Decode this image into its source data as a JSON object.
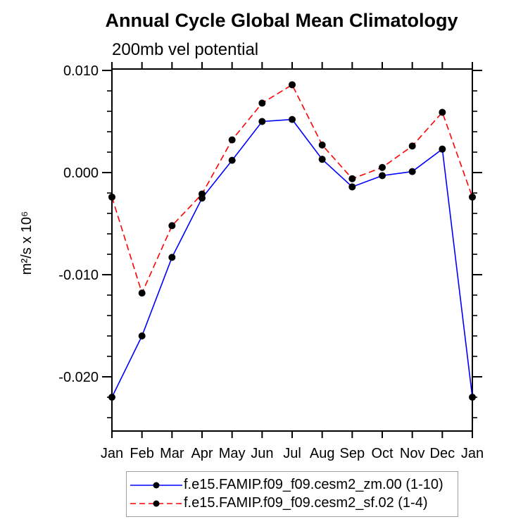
{
  "figure": {
    "background_color": "#ffffff",
    "text_color": "#000000",
    "axis_color": "#000000",
    "legend_border_color": "#9e9e9e"
  },
  "chart_data": {
    "type": "line",
    "title": "Annual Cycle Global Mean Climatology",
    "subtitle": "200mb vel potential",
    "ylabel": "m²/s x 10⁶",
    "xlabel": "",
    "categories": [
      "Jan",
      "Feb",
      "Mar",
      "Apr",
      "May",
      "Jun",
      "Jul",
      "Aug",
      "Sep",
      "Oct",
      "Nov",
      "Dec",
      "Jan"
    ],
    "ylim": [
      -0.02531,
      0.01014
    ],
    "yticks": {
      "major": [
        0.01,
        0.0,
        -0.01,
        -0.02
      ],
      "major_labels": [
        "0.010",
        "0.000",
        "-0.010",
        "-0.020"
      ],
      "minor_step": 0.002
    },
    "grid": false,
    "legend_position": "bottom",
    "series": [
      {
        "name": "f.e15.FAMIP.f09_f09.cesm2_zm.00 (1-10)",
        "color": "#0000ff",
        "line_style": "solid",
        "marker": "circle",
        "marker_color": "#000000",
        "values": [
          -0.022,
          -0.016,
          -0.0083,
          -0.0025,
          0.0012,
          0.005,
          0.0052,
          0.0013,
          -0.0014,
          -0.0003,
          0.0001,
          0.0023,
          -0.022
        ]
      },
      {
        "name": "f.e15.FAMIP.f09_f09.cesm2_sf.02 (1-4)",
        "color": "#ff0000",
        "line_style": "dashed",
        "marker": "circle",
        "marker_color": "#000000",
        "values": [
          -0.0024,
          -0.0118,
          -0.0052,
          -0.0021,
          0.0032,
          0.0068,
          0.0086,
          0.0027,
          -0.0006,
          0.0005,
          0.0026,
          0.0059,
          -0.0024
        ]
      }
    ]
  }
}
